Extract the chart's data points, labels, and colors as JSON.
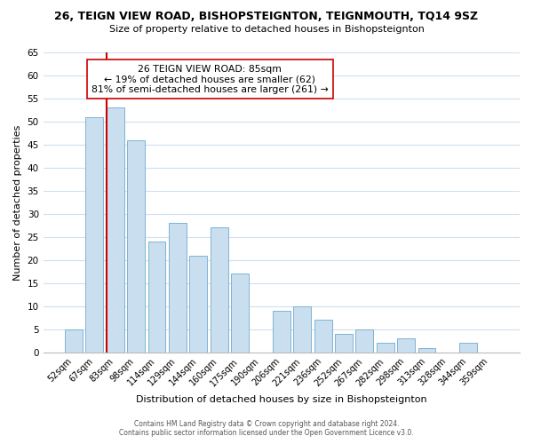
{
  "title": "26, TEIGN VIEW ROAD, BISHOPSTEIGNTON, TEIGNMOUTH, TQ14 9SZ",
  "subtitle": "Size of property relative to detached houses in Bishopsteignton",
  "xlabel": "Distribution of detached houses by size in Bishopsteignton",
  "ylabel": "Number of detached properties",
  "bar_labels": [
    "52sqm",
    "67sqm",
    "83sqm",
    "98sqm",
    "114sqm",
    "129sqm",
    "144sqm",
    "160sqm",
    "175sqm",
    "190sqm",
    "206sqm",
    "221sqm",
    "236sqm",
    "252sqm",
    "267sqm",
    "282sqm",
    "298sqm",
    "313sqm",
    "328sqm",
    "344sqm",
    "359sqm"
  ],
  "bar_values": [
    5,
    51,
    53,
    46,
    24,
    28,
    21,
    27,
    17,
    0,
    9,
    10,
    7,
    4,
    5,
    2,
    3,
    1,
    0,
    2,
    0
  ],
  "bar_color": "#c9dff0",
  "bar_edge_color": "#7fb3d3",
  "ylim": [
    0,
    65
  ],
  "yticks": [
    0,
    5,
    10,
    15,
    20,
    25,
    30,
    35,
    40,
    45,
    50,
    55,
    60,
    65
  ],
  "reference_line_x_label": "83sqm",
  "reference_line_color": "#cc0000",
  "annotation_title": "26 TEIGN VIEW ROAD: 85sqm",
  "annotation_line1": "← 19% of detached houses are smaller (62)",
  "annotation_line2": "81% of semi-detached houses are larger (261) →",
  "footer_line1": "Contains HM Land Registry data © Crown copyright and database right 2024.",
  "footer_line2": "Contains public sector information licensed under the Open Government Licence v3.0.",
  "background_color": "#ffffff",
  "grid_color": "#d0dff0"
}
